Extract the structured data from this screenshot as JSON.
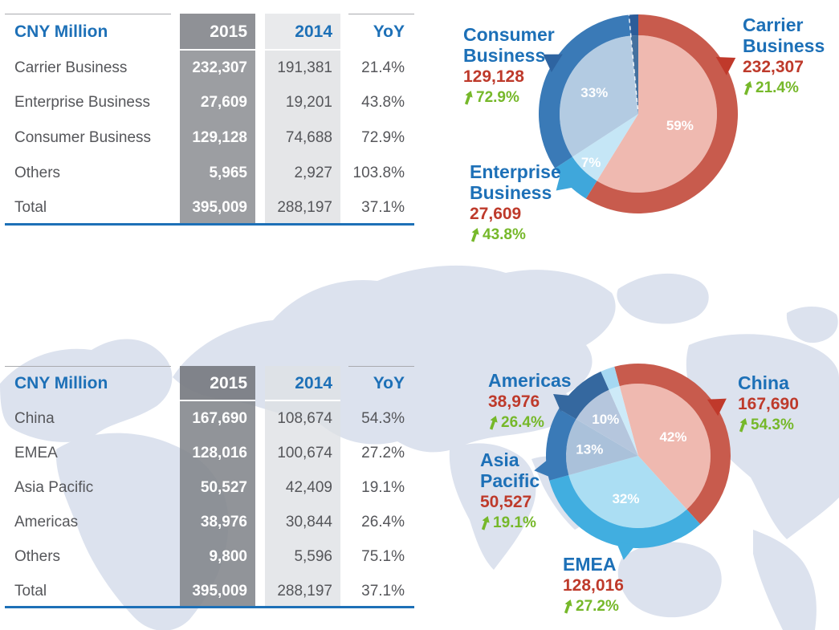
{
  "palette": {
    "heading_blue": "#1d70b7",
    "value_red": "#be3a2b",
    "growth_green": "#76b82a",
    "table_text": "#55565a",
    "map_fill": "#dce2ee"
  },
  "business_table": {
    "unit_label": "CNY Million",
    "columns": [
      "2015",
      "2014",
      "YoY"
    ],
    "rows": [
      {
        "label": "Carrier Business",
        "y2015": "232,307",
        "y2014": "191,381",
        "yoy": "21.4%"
      },
      {
        "label": "Enterprise Business",
        "y2015": "27,609",
        "y2014": "19,201",
        "yoy": "43.8%"
      },
      {
        "label": "Consumer Business",
        "y2015": "129,128",
        "y2014": "74,688",
        "yoy": "72.9%"
      },
      {
        "label": "Others",
        "y2015": "5,965",
        "y2014": "2,927",
        "yoy": "103.8%"
      },
      {
        "label": "Total",
        "y2015": "395,009",
        "y2014": "288,197",
        "yoy": "37.1%"
      }
    ]
  },
  "region_table": {
    "unit_label": "CNY Million",
    "columns": [
      "2015",
      "2014",
      "YoY"
    ],
    "rows": [
      {
        "label": "China",
        "y2015": "167,690",
        "y2014": "108,674",
        "yoy": "54.3%"
      },
      {
        "label": "EMEA",
        "y2015": "128,016",
        "y2014": "100,674",
        "yoy": "27.2%"
      },
      {
        "label": "Asia Pacific",
        "y2015": "50,527",
        "y2014": "42,409",
        "yoy": "19.1%"
      },
      {
        "label": "Americas",
        "y2015": "38,976",
        "y2014": "30,844",
        "yoy": "26.4%"
      },
      {
        "label": "Others",
        "y2015": "9,800",
        "y2014": "5,596",
        "yoy": "75.1%"
      },
      {
        "label": "Total",
        "y2015": "395,009",
        "y2014": "288,197",
        "yoy": "37.1%"
      }
    ]
  },
  "chart_data": [
    {
      "type": "pie",
      "unit": "CNY Million",
      "start_deg": 0,
      "divider_deg": 354.6,
      "slices": [
        {
          "label": "Carrier Business",
          "value": 232307,
          "pct_label": "59%",
          "outer_color": "#c85b4d",
          "inner_color": "#efb9b0",
          "label_r": 0.55
        },
        {
          "label": "Enterprise Business",
          "value": 27609,
          "pct_label": "7%",
          "outer_color": "#3fa7db",
          "inner_color": "#c5e6f6",
          "label_r": 0.86
        },
        {
          "label": "Consumer Business",
          "value": 129128,
          "pct_label": "33%",
          "outer_color": "#3a7ab7",
          "inner_color": "#b3cbe2",
          "label_r": 0.62
        },
        {
          "label": "Others",
          "value": 5965,
          "pct_label": "",
          "outer_color": "#2b5c99",
          "inner_color": "#44719f",
          "label_r": 0.5
        }
      ],
      "callouts": [
        {
          "label": "Consumer Business",
          "amount": "129,128",
          "yoy": "72.9%",
          "pointer_deg": 302,
          "pointer_color": "#2e64a1"
        },
        {
          "label": "Carrier Business",
          "amount": "232,307",
          "yoy": "21.4%",
          "pointer_deg": 60,
          "pointer_color": "#c0392b"
        },
        {
          "label": "Enterprise Business",
          "amount": "27,609",
          "yoy": "43.8%",
          "pointer_deg": 227,
          "pointer_color": "#3fa7db"
        }
      ]
    },
    {
      "type": "pie",
      "unit": "CNY Million",
      "start_deg": 345,
      "divider_deg": null,
      "slices": [
        {
          "label": "China",
          "value": 167690,
          "pct_label": "42%",
          "outer_color": "#c85b4d",
          "inner_color": "#efb9b0",
          "label_r": 0.55
        },
        {
          "label": "EMEA",
          "value": 128016,
          "pct_label": "32%",
          "outer_color": "#41aee0",
          "inner_color": "#abdef3",
          "label_r": 0.62
        },
        {
          "label": "Asia Pacific",
          "value": 50527,
          "pct_label": "13%",
          "outer_color": "#3a7ab7",
          "inner_color": "#aac1da",
          "label_r": 0.68
        },
        {
          "label": "Americas",
          "value": 38976,
          "pct_label": "10%",
          "outer_color": "#35689f",
          "inner_color": "#b5c6dd",
          "label_r": 0.68
        },
        {
          "label": "Others",
          "value": 9800,
          "pct_label": "",
          "outer_color": "#a5d8f2",
          "inner_color": "#cdeaf8",
          "label_r": 0.5
        }
      ],
      "callouts": [
        {
          "label": "Americas",
          "amount": "38,976",
          "yoy": "26.4%",
          "pointer_deg": 306,
          "pointer_color": "#35689f"
        },
        {
          "label": "China",
          "amount": "167,690",
          "yoy": "54.3%",
          "pointer_deg": 57,
          "pointer_color": "#c0392b"
        },
        {
          "label": "Asia Pacific",
          "amount": "50,527",
          "yoy": "19.1%",
          "pointer_deg": 262,
          "pointer_color": "#3a7ab7"
        },
        {
          "label": "EMEA",
          "amount": "128,016",
          "yoy": "27.2%",
          "pointer_deg": 188,
          "pointer_color": "#41aee0"
        }
      ]
    }
  ]
}
